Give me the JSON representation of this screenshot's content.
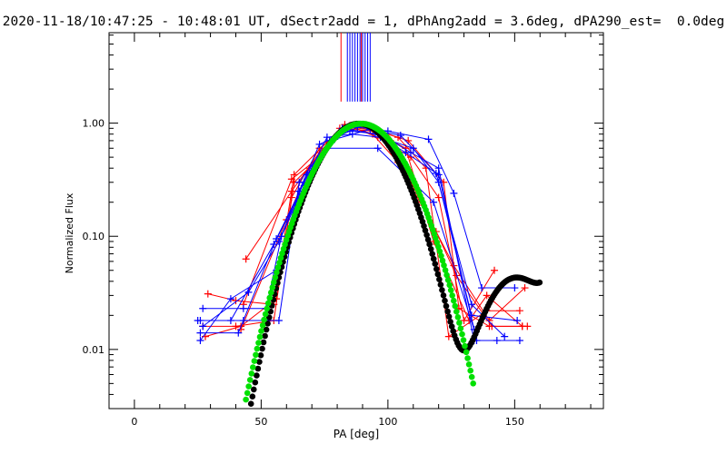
{
  "chart_data": {
    "type": "scatter",
    "title": "2020-11-18/10:47:25 - 10:48:01 UT, dSectr2add = 1, dPhAng2add = 3.6deg, dPA290_est=  0.0deg",
    "xlabel": "PA [deg]",
    "ylabel": "Normalized Flux",
    "xlim": [
      -10,
      185
    ],
    "ylim": [
      0.003,
      6.3
    ],
    "yscale": "log",
    "x_ticks": [
      0,
      50,
      100,
      150
    ],
    "x_tick_labels": [
      "0",
      "50",
      "100",
      "150"
    ],
    "y_ticks": [
      0.01,
      0.1,
      1.0
    ],
    "y_tick_labels": [
      "0.01",
      "0.10",
      "1.00"
    ],
    "colors": {
      "red": "#ff0000",
      "blue": "#0000ff",
      "green": "#00e000",
      "black": "#000000"
    },
    "vertical_markers": {
      "red": [
        81.5,
        89.5
      ],
      "blue": [
        84,
        85,
        86,
        87,
        88,
        89,
        90,
        91,
        92,
        93
      ]
    },
    "series": [
      {
        "name": "red-1",
        "color": "red",
        "points": [
          [
            44,
            0.063
          ],
          [
            62,
            0.25
          ],
          [
            73,
            0.55
          ],
          [
            83,
            0.97
          ],
          [
            94,
            0.8
          ],
          [
            104,
            0.45
          ],
          [
            119,
            0.11
          ],
          [
            127,
            0.045
          ],
          [
            141,
            0.016
          ],
          [
            155,
            0.016
          ]
        ]
      },
      {
        "name": "red-2",
        "color": "red",
        "points": [
          [
            29,
            0.031
          ],
          [
            40,
            0.027
          ],
          [
            55,
            0.025
          ],
          [
            63,
            0.35
          ],
          [
            76,
            0.68
          ],
          [
            86,
            0.92
          ],
          [
            96,
            0.85
          ],
          [
            108,
            0.7
          ],
          [
            122,
            0.3
          ],
          [
            128,
            0.023
          ],
          [
            140,
            0.016
          ],
          [
            153,
            0.016
          ]
        ]
      },
      {
        "name": "red-3",
        "color": "red",
        "points": [
          [
            28,
            0.013
          ],
          [
            42,
            0.016
          ],
          [
            56,
            0.028
          ],
          [
            62,
            0.22
          ],
          [
            73,
            0.6
          ],
          [
            85,
            0.95
          ],
          [
            93,
            0.9
          ],
          [
            104,
            0.75
          ],
          [
            115,
            0.4
          ],
          [
            124,
            0.013
          ],
          [
            139,
            0.022
          ],
          [
            152,
            0.022
          ]
        ]
      },
      {
        "name": "red-4",
        "color": "red",
        "points": [
          [
            27,
            0.016
          ],
          [
            40,
            0.016
          ],
          [
            55,
            0.018
          ],
          [
            63,
            0.3
          ],
          [
            71,
            0.45
          ],
          [
            81,
            0.9
          ],
          [
            92,
            0.95
          ],
          [
            101,
            0.7
          ],
          [
            113,
            0.2
          ],
          [
            126,
            0.055
          ],
          [
            140,
            0.018
          ],
          [
            154,
            0.035
          ]
        ]
      },
      {
        "name": "red-5",
        "color": "red",
        "points": [
          [
            43,
            0.025
          ],
          [
            62,
            0.32
          ],
          [
            73,
            0.5
          ],
          [
            85,
            0.94
          ],
          [
            96,
            0.75
          ],
          [
            109,
            0.5
          ],
          [
            120,
            0.22
          ],
          [
            130,
            0.018
          ],
          [
            142,
            0.05
          ]
        ]
      },
      {
        "name": "red-6",
        "color": "red",
        "points": [
          [
            42,
            0.015
          ],
          [
            60,
            0.14
          ],
          [
            69,
            0.4
          ],
          [
            82,
            0.9
          ],
          [
            94,
            0.85
          ],
          [
            107,
            0.6
          ],
          [
            118,
            0.09
          ],
          [
            132,
            0.018
          ],
          [
            139,
            0.03
          ],
          [
            153,
            0.016
          ]
        ]
      },
      {
        "name": "blue-1",
        "color": "blue",
        "points": [
          [
            25,
            0.018
          ],
          [
            43,
            0.018
          ],
          [
            57,
            0.018
          ],
          [
            65,
            0.3
          ],
          [
            77,
            0.7
          ],
          [
            88,
            0.92
          ],
          [
            100,
            0.85
          ],
          [
            116,
            0.72
          ],
          [
            126,
            0.24
          ],
          [
            137,
            0.035
          ],
          [
            150,
            0.035
          ]
        ]
      },
      {
        "name": "blue-2",
        "color": "blue",
        "points": [
          [
            26,
            0.014
          ],
          [
            41,
            0.014
          ],
          [
            56,
            0.095
          ],
          [
            67,
            0.3
          ],
          [
            76,
            0.75
          ],
          [
            86,
            0.8
          ],
          [
            97,
            0.75
          ],
          [
            110,
            0.6
          ],
          [
            120,
            0.3
          ],
          [
            133,
            0.02
          ],
          [
            151,
            0.018
          ]
        ]
      },
      {
        "name": "blue-3",
        "color": "blue",
        "points": [
          [
            27,
            0.023
          ],
          [
            43,
            0.023
          ],
          [
            52,
            0.023
          ],
          [
            58,
            0.1
          ],
          [
            70,
            0.4
          ],
          [
            82,
            0.9
          ],
          [
            95,
            0.8
          ],
          [
            107,
            0.55
          ],
          [
            120,
            0.35
          ],
          [
            135,
            0.012
          ],
          [
            152,
            0.012
          ]
        ]
      },
      {
        "name": "blue-4",
        "color": "blue",
        "points": [
          [
            26,
            0.012
          ],
          [
            38,
            0.028
          ],
          [
            56,
            0.05
          ],
          [
            65,
            0.25
          ],
          [
            73,
            0.65
          ],
          [
            85,
            0.85
          ],
          [
            97,
            0.8
          ],
          [
            109,
            0.55
          ],
          [
            120,
            0.4
          ],
          [
            134,
            0.012
          ],
          [
            143,
            0.012
          ]
        ]
      },
      {
        "name": "blue-5",
        "color": "blue",
        "points": [
          [
            27,
            0.016
          ],
          [
            45,
            0.032
          ],
          [
            57,
            0.09
          ],
          [
            68,
            0.35
          ],
          [
            76,
            0.6
          ],
          [
            96,
            0.6
          ],
          [
            118,
            0.2
          ],
          [
            134,
            0.015
          ]
        ]
      },
      {
        "name": "blue-6",
        "color": "blue",
        "points": [
          [
            26,
            0.018
          ],
          [
            38,
            0.018
          ],
          [
            55,
            0.085
          ],
          [
            67,
            0.28
          ],
          [
            79,
            0.72
          ],
          [
            93,
            0.88
          ],
          [
            105,
            0.78
          ],
          [
            119,
            0.36
          ],
          [
            133,
            0.025
          ],
          [
            146,
            0.013
          ]
        ]
      }
    ],
    "model_curves": [
      {
        "name": "black-model",
        "color": "black",
        "x_range": [
          46,
          160
        ],
        "peak_x": 88.5,
        "peak_y": 0.99
      },
      {
        "name": "green-model",
        "color": "green",
        "x_range": [
          44,
          134
        ],
        "peak_x": 89.5,
        "peak_y": 0.99
      }
    ]
  }
}
